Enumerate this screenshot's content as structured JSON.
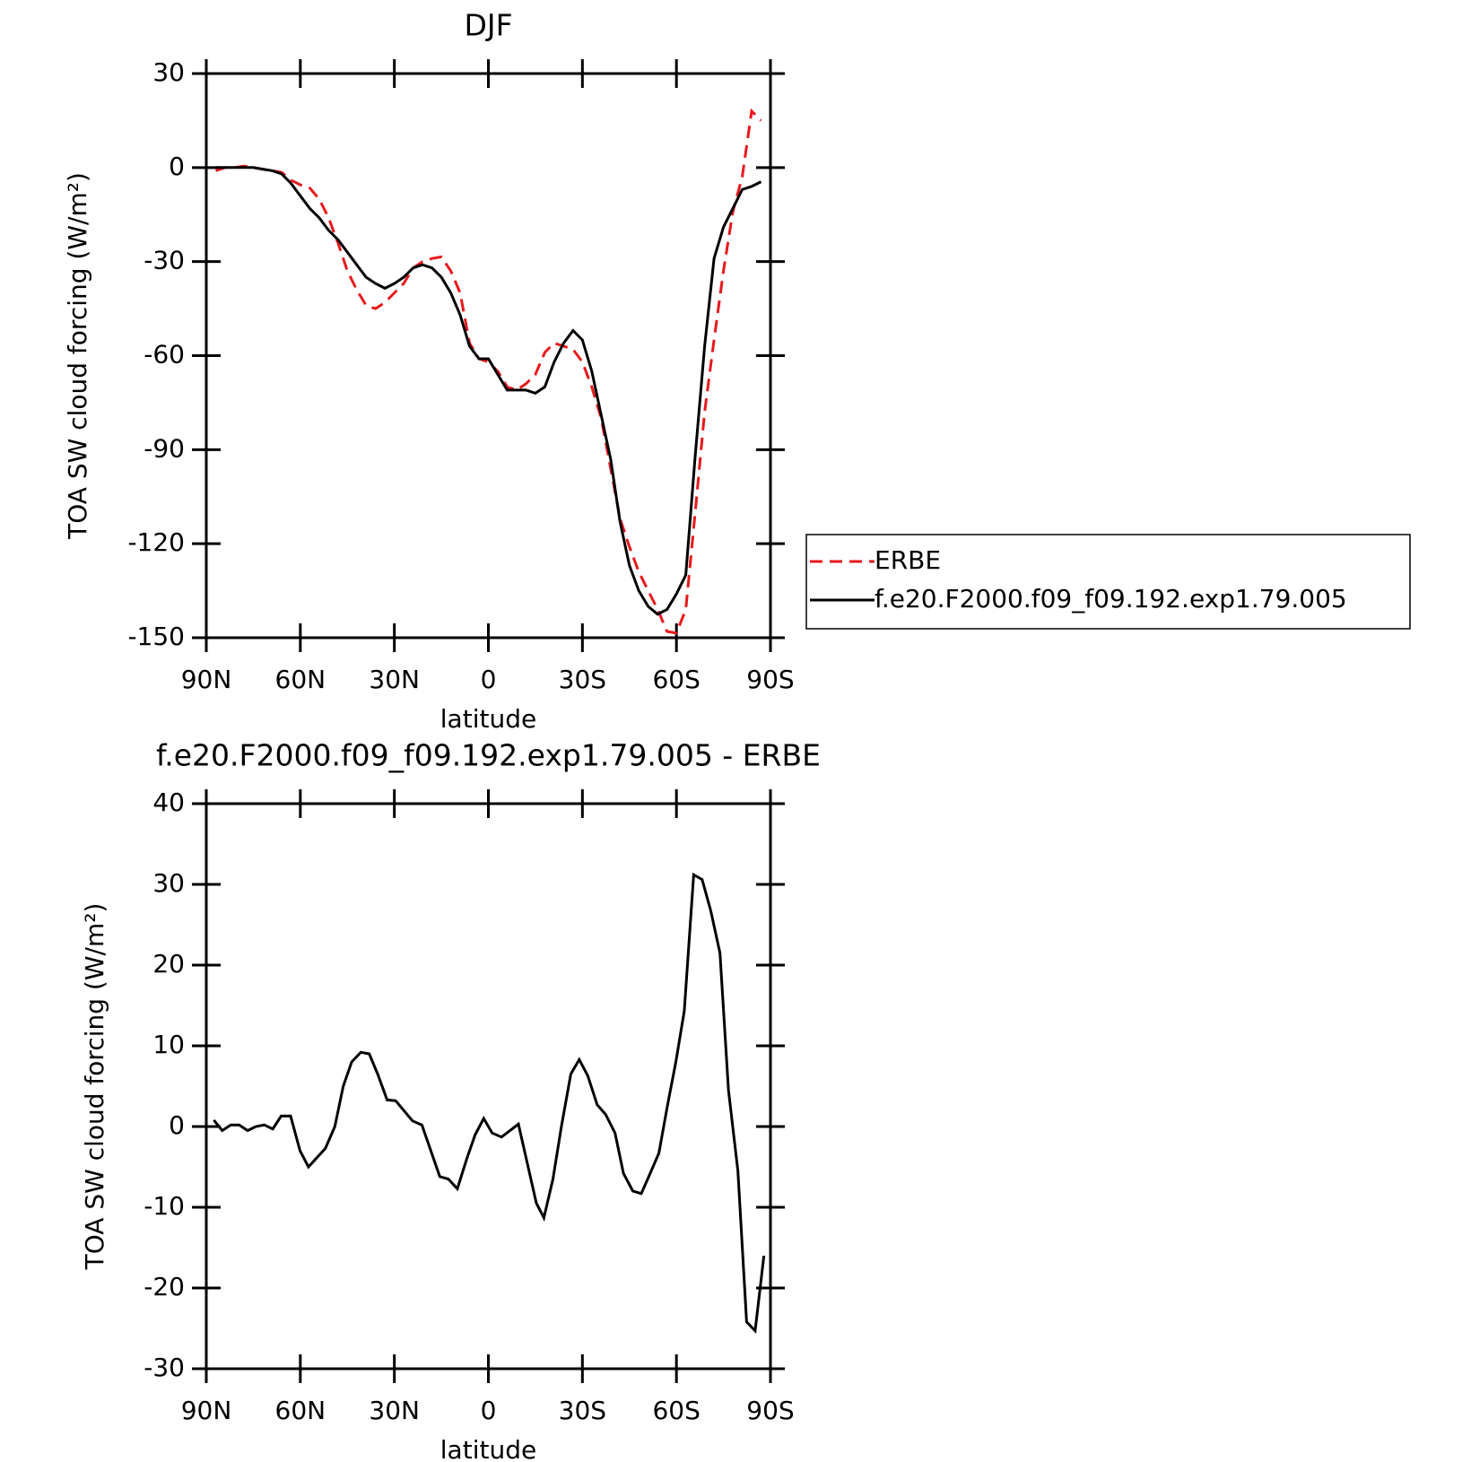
{
  "chart_data": [
    {
      "type": "line",
      "title": "DJF",
      "xlabel": "latitude",
      "ylabel": "TOA SW cloud forcing (W/m²)",
      "x": [
        87,
        84,
        81,
        78,
        75,
        72,
        69,
        66,
        63,
        60,
        57,
        54,
        51,
        48,
        45,
        42,
        39,
        36,
        33,
        30,
        27,
        24,
        21,
        18,
        15,
        12,
        9,
        6,
        3,
        0,
        -3,
        -6,
        -9,
        -12,
        -15,
        -18,
        -21,
        -24,
        -27,
        -30,
        -33,
        -36,
        -39,
        -42,
        -45,
        -48,
        -51,
        -54,
        -57,
        -60,
        -63,
        -66,
        -69,
        -72,
        -75,
        -78,
        -81,
        -84,
        -87
      ],
      "series": [
        {
          "name": "ERBE",
          "color": "#e8191c",
          "dashed": true,
          "values": [
            -1,
            0,
            0,
            0.5,
            0,
            -0.5,
            -1,
            -1.5,
            -4,
            -5.5,
            -6.5,
            -10,
            -16,
            -24,
            -33,
            -39,
            -44,
            -45,
            -43,
            -40,
            -37,
            -32,
            -30,
            -29,
            -28.5,
            -33,
            -40,
            -56,
            -61,
            -62,
            -65,
            -70,
            -71,
            -69,
            -66,
            -59,
            -56,
            -57,
            -58,
            -62,
            -70,
            -80,
            -96,
            -112,
            -121,
            -129,
            -135,
            -141,
            -148,
            -148.5,
            -141,
            -110,
            -78,
            -55,
            -33,
            -14,
            -3,
            18,
            15
          ]
        },
        {
          "name": "f.e20.F2000.f09_f09.192.exp1.79.005",
          "color": "#000000",
          "dashed": false,
          "values": [
            0,
            0,
            0,
            0,
            0,
            -0.5,
            -1,
            -2,
            -5,
            -9,
            -13,
            -16,
            -20,
            -23,
            -27,
            -31,
            -35,
            -37,
            -38.5,
            -37,
            -35,
            -32,
            -31,
            -32,
            -35,
            -40,
            -47,
            -57,
            -61,
            -61,
            -66,
            -71,
            -71,
            -71,
            -72,
            -70,
            -62,
            -56,
            -52,
            -55,
            -65,
            -79,
            -93,
            -113,
            -127,
            -135,
            -140,
            -142.5,
            -141,
            -136,
            -130,
            -92,
            -57,
            -29,
            -19,
            -13,
            -7,
            -6,
            -4.5
          ]
        }
      ],
      "xlim": [
        90,
        -90
      ],
      "xticks": [
        {
          "value": 90,
          "label": "90N"
        },
        {
          "value": 60,
          "label": "60N"
        },
        {
          "value": 30,
          "label": "30N"
        },
        0,
        {
          "value": -30,
          "label": "30S"
        },
        {
          "value": -60,
          "label": "60S"
        },
        {
          "value": -90,
          "label": "90S"
        }
      ],
      "ylim": [
        -150,
        30
      ],
      "yticks": [
        -150,
        -120,
        -90,
        -60,
        -30,
        0,
        30
      ],
      "legend": "right"
    },
    {
      "type": "line",
      "title": "f.e20.F2000.f09_f09.192.exp1.79.005 - ERBE",
      "xlabel": "latitude",
      "ylabel": "TOA SW cloud forcing (W/m²)",
      "x": [
        87.6,
        84.9,
        82.2,
        79.5,
        76.8,
        74.2,
        71.5,
        68.8,
        66.1,
        63.1,
        60.1,
        57.4,
        52.0,
        49.0,
        46.3,
        43.6,
        40.7,
        38.0,
        35.3,
        32.3,
        29.6,
        24.2,
        21.2,
        15.5,
        12.8,
        9.9,
        6.9,
        4.2,
        1.5,
        -1.2,
        -4.2,
        -9.6,
        -15.3,
        -17.7,
        -20.6,
        -23.3,
        -26.3,
        -29.0,
        -31.7,
        -34.7,
        -37.4,
        -40.4,
        -43.1,
        -46.1,
        -48.8,
        -51.4,
        -54.4,
        -57.1,
        -59.8,
        -62.5,
        -65.5,
        -68.2,
        -70.9,
        -73.9,
        -76.6,
        -79.6,
        -82.4,
        -85.1,
        -87.9
      ],
      "series": [
        {
          "color": "#000000",
          "dashed": false,
          "values": [
            0.8,
            -0.5,
            0.2,
            0.2,
            -0.5,
            0,
            0.2,
            -0.3,
            1.3,
            1.3,
            -3,
            -5,
            -2.7,
            0,
            5,
            8,
            9.2,
            9,
            6.5,
            3.3,
            3.2,
            0.7,
            0.2,
            -6.2,
            -6.5,
            -7.7,
            -4,
            -1,
            1,
            -0.8,
            -1.3,
            0.3,
            -9.5,
            -11.3,
            -6.5,
            0,
            6.5,
            8.3,
            6.3,
            2.7,
            1.5,
            -0.8,
            -5.8,
            -8,
            -8.3,
            -6,
            -3.3,
            2.5,
            8,
            14.3,
            31.2,
            30.6,
            26.8,
            21.5,
            4.5,
            -5.5,
            -24.2,
            -25.3,
            -16
          ]
        }
      ],
      "xlim": [
        90,
        -90
      ],
      "xticks": [
        {
          "value": 90,
          "label": "90N"
        },
        {
          "value": 60,
          "label": "60N"
        },
        {
          "value": 30,
          "label": "30N"
        },
        0,
        {
          "value": -30,
          "label": "30S"
        },
        {
          "value": -60,
          "label": "60S"
        },
        {
          "value": -90,
          "label": "90S"
        }
      ],
      "ylim": [
        -30,
        40
      ],
      "yticks": [
        -30,
        -20,
        -10,
        0,
        10,
        20,
        30,
        40
      ]
    }
  ]
}
